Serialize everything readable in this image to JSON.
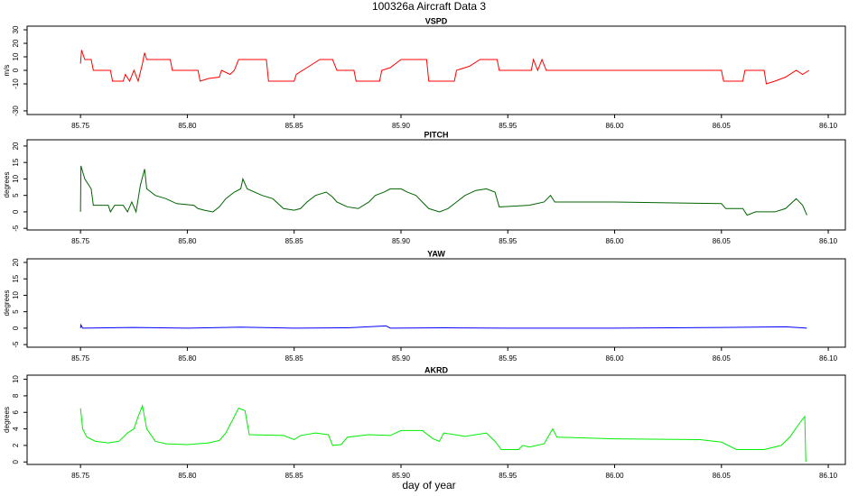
{
  "title": "100326a   Aircraft Data 3",
  "xlabel": "day of year",
  "chart_data": [
    {
      "type": "line",
      "title": "VSPD",
      "ylabel": "m/s",
      "color": "#ff0000",
      "xlim": [
        85.725,
        86.108
      ],
      "ylim": [
        -32.7,
        32.7
      ],
      "xticks": [
        85.75,
        {
          "value": 85.8,
          "label": "85.80"
        },
        85.85,
        {
          "value": 85.9,
          "label": "85.90"
        },
        85.95,
        {
          "value": 86.0,
          "label": "86.00"
        },
        86.05,
        {
          "value": 86.1,
          "label": "86.10"
        }
      ],
      "yticks": [
        -30,
        -10,
        0,
        10,
        20,
        30
      ],
      "x": [
        85.75,
        85.7505,
        85.752,
        85.755,
        85.756,
        85.764,
        85.765,
        85.77,
        85.771,
        85.773,
        85.775,
        85.777,
        85.779,
        85.78,
        85.781,
        85.792,
        85.793,
        85.805,
        85.806,
        85.81,
        85.815,
        85.816,
        85.82,
        85.822,
        85.824,
        85.837,
        85.838,
        85.85,
        85.851,
        85.857,
        85.862,
        85.868,
        85.87,
        85.878,
        85.879,
        85.89,
        85.891,
        85.895,
        85.9,
        85.912,
        85.913,
        85.925,
        85.926,
        85.932,
        85.937,
        85.945,
        85.946,
        85.961,
        85.962,
        85.964,
        85.966,
        85.968,
        86.0,
        86.05,
        86.051,
        86.06,
        86.061,
        86.07,
        86.071,
        86.075,
        86.08,
        86.085,
        86.088,
        86.091
      ],
      "values": [
        5,
        15,
        8,
        8,
        0,
        0,
        -8,
        -8,
        -3,
        -8,
        0,
        -8,
        5,
        13,
        8,
        8,
        0,
        0,
        -8,
        -6,
        -5,
        0,
        -3,
        0,
        8,
        8,
        -8,
        -8,
        -3,
        3,
        8,
        8,
        0,
        0,
        -8,
        -8,
        0,
        2,
        8,
        8,
        -8,
        -8,
        0,
        3,
        8,
        8,
        0,
        0,
        8,
        0,
        8,
        0,
        0,
        0,
        -8,
        -8,
        0,
        0,
        -10,
        -8,
        -5,
        0,
        -3,
        0
      ]
    },
    {
      "type": "line",
      "title": "PITCH",
      "ylabel": "degrees",
      "color": "#006400",
      "xlim": [
        85.725,
        86.108
      ],
      "ylim": [
        -5.5,
        21.9
      ],
      "xticks": [
        85.75,
        {
          "value": 85.8,
          "label": "85.80"
        },
        85.85,
        {
          "value": 85.9,
          "label": "85.90"
        },
        85.95,
        {
          "value": 86.0,
          "label": "86.00"
        },
        86.05,
        {
          "value": 86.1,
          "label": "86.10"
        }
      ],
      "yticks": [
        -5,
        0,
        5,
        10,
        15,
        20
      ],
      "x": [
        85.75,
        85.7502,
        85.752,
        85.755,
        85.756,
        85.763,
        85.764,
        85.766,
        85.77,
        85.772,
        85.774,
        85.776,
        85.778,
        85.78,
        85.781,
        85.785,
        85.79,
        85.795,
        85.803,
        85.805,
        85.808,
        85.812,
        85.815,
        85.818,
        85.822,
        85.825,
        85.826,
        85.828,
        85.835,
        85.84,
        85.845,
        85.85,
        85.853,
        85.856,
        85.86,
        85.865,
        85.868,
        85.87,
        85.875,
        85.88,
        85.885,
        85.888,
        85.892,
        85.895,
        85.9,
        85.903,
        85.907,
        85.91,
        85.913,
        85.918,
        85.922,
        85.926,
        85.93,
        85.935,
        85.94,
        85.944,
        85.946,
        85.96,
        85.967,
        85.97,
        85.972,
        86.0,
        86.05,
        86.052,
        86.06,
        86.062,
        86.066,
        86.075,
        86.08,
        86.085,
        86.088,
        86.09
      ],
      "values": [
        0,
        14,
        10,
        7,
        2,
        2,
        0,
        2,
        2,
        0,
        3,
        0,
        8,
        13,
        7,
        5,
        4,
        2.5,
        2,
        1,
        0.5,
        0,
        1.5,
        4,
        6,
        7,
        10,
        7,
        5,
        4,
        1,
        0.5,
        1,
        3,
        5,
        6,
        4.5,
        3,
        1.5,
        1,
        3,
        5,
        6,
        7,
        7,
        6,
        5,
        3,
        1,
        0,
        1,
        3,
        5,
        6.5,
        7,
        6,
        1.5,
        2,
        3,
        5,
        3,
        3,
        2.5,
        1,
        1,
        -1,
        0,
        0,
        1,
        4,
        2,
        -1
      ]
    },
    {
      "type": "line",
      "title": "YAW",
      "ylabel": "degrees",
      "color": "#0000ff",
      "xlim": [
        85.725,
        86.108
      ],
      "ylim": [
        -5.8,
        21.1
      ],
      "xticks": [
        85.75,
        {
          "value": 85.8,
          "label": "85.80"
        },
        85.85,
        {
          "value": 85.9,
          "label": "85.90"
        },
        85.95,
        {
          "value": 86.0,
          "label": "86.00"
        },
        86.05,
        {
          "value": 86.1,
          "label": "86.10"
        }
      ],
      "yticks": [
        -5,
        0,
        5,
        10,
        15,
        20
      ],
      "x": [
        85.75,
        85.7502,
        85.751,
        85.775,
        85.8,
        85.825,
        85.85,
        85.875,
        85.893,
        85.895,
        85.92,
        85.95,
        86.0,
        86.05,
        86.08,
        86.09
      ],
      "values": [
        0,
        1,
        0,
        0.2,
        0,
        0.3,
        0,
        0.1,
        0.7,
        0,
        0.1,
        0,
        0,
        0.2,
        0.4,
        0
      ]
    },
    {
      "type": "line",
      "title": "AKRD",
      "ylabel": "degrees",
      "color": "#00ee00",
      "xlim": [
        85.725,
        86.108
      ],
      "ylim": [
        -0.3,
        10.5
      ],
      "xticks": [
        85.75,
        {
          "value": 85.8,
          "label": "85.80"
        },
        85.85,
        {
          "value": 85.9,
          "label": "85.90"
        },
        85.95,
        {
          "value": 86.0,
          "label": "86.00"
        },
        86.05,
        {
          "value": 86.1,
          "label": "86.10"
        }
      ],
      "yticks": [
        0,
        2,
        4,
        6,
        8,
        10
      ],
      "x": [
        85.75,
        85.751,
        85.753,
        85.757,
        85.763,
        85.768,
        85.772,
        85.775,
        85.777,
        85.779,
        85.781,
        85.785,
        85.79,
        85.8,
        85.81,
        85.815,
        85.818,
        85.821,
        85.824,
        85.827,
        85.829,
        85.845,
        85.85,
        85.853,
        85.86,
        85.866,
        85.868,
        85.872,
        85.875,
        85.885,
        85.895,
        85.9,
        85.91,
        85.915,
        85.918,
        85.92,
        85.93,
        85.94,
        85.944,
        85.947,
        85.955,
        85.957,
        85.96,
        85.967,
        85.971,
        85.973,
        86.0,
        86.04,
        86.05,
        86.057,
        86.07,
        86.078,
        86.082,
        86.086,
        86.089,
        86.0895
      ],
      "values": [
        6.5,
        4,
        3,
        2.5,
        2.3,
        2.5,
        3.5,
        4,
        5.5,
        6.8,
        4,
        2.5,
        2.2,
        2.1,
        2.3,
        2.6,
        3.5,
        5,
        6.5,
        6.2,
        3.3,
        3.2,
        2.7,
        3.2,
        3.5,
        3.3,
        2,
        2.1,
        3,
        3.3,
        3.2,
        3.8,
        3.8,
        2.8,
        2.5,
        3.5,
        3.1,
        3.5,
        2.5,
        1.5,
        1.5,
        2,
        1.8,
        2.2,
        4,
        3,
        2.8,
        2.7,
        2.4,
        1.5,
        1.5,
        2,
        3,
        4.5,
        5.5,
        0
      ]
    }
  ]
}
